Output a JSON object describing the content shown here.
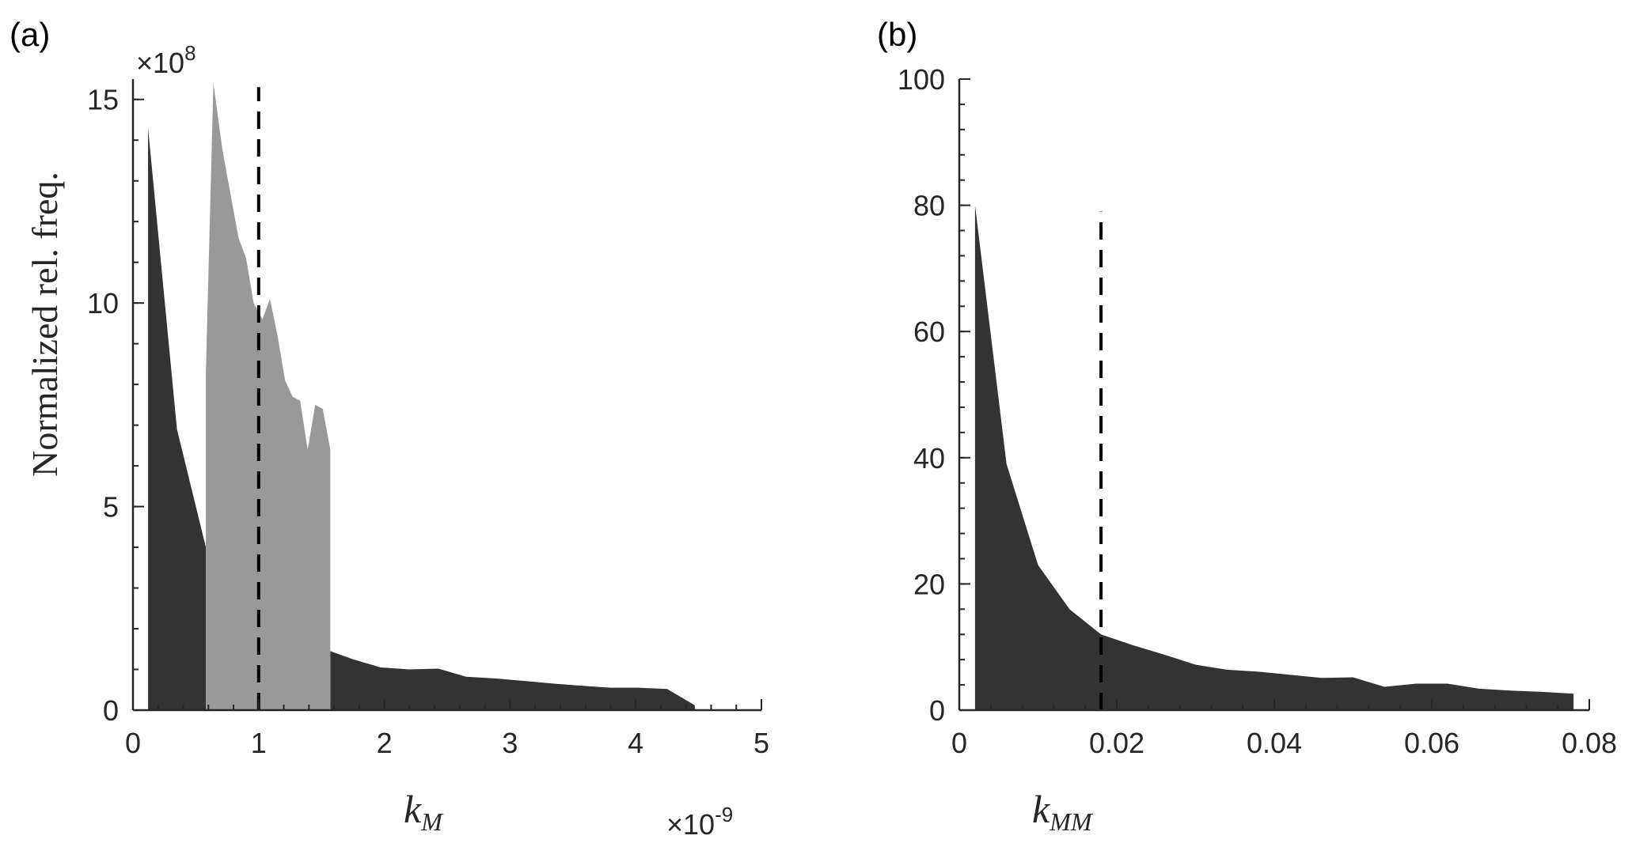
{
  "chart_data": [
    {
      "panel_label": "(a)",
      "type": "area",
      "xlabel": {
        "main": "k",
        "sub": "M"
      },
      "ylabel": "Normalized rel. freq.",
      "y_exponent": {
        "prefix": "×10",
        "power": "8"
      },
      "x_exponent": {
        "prefix": "×10",
        "power": "-9"
      },
      "xlim": [
        0,
        5
      ],
      "ylim": [
        0,
        15.5
      ],
      "xticks": [
        0,
        1,
        2,
        3,
        4,
        5
      ],
      "xtick_labels": [
        "0",
        "1",
        "2",
        "3",
        "4",
        "5"
      ],
      "yticks": [
        0,
        5,
        10,
        15
      ],
      "ytick_labels": [
        "0",
        "5",
        "10",
        "15"
      ],
      "y_minor_step": 1,
      "x_minor_step": 0.2,
      "vline": 1.0,
      "vline_ymax": 15.3,
      "series": [
        {
          "color": "#333333",
          "x": [
            0.12,
            0.35,
            0.58,
            0.58,
            1.57,
            1.57,
            1.75,
            1.97,
            2.2,
            2.43,
            2.65,
            2.88,
            3.1,
            3.35,
            3.57,
            3.8,
            4.02,
            4.25,
            4.47
          ],
          "y": [
            14.3,
            6.9,
            4.0,
            0,
            0,
            1.45,
            1.25,
            1.05,
            1.0,
            1.02,
            0.82,
            0.78,
            0.72,
            0.65,
            0.6,
            0.55,
            0.55,
            0.52,
            0.12
          ]
        },
        {
          "color": "#999999",
          "x": [
            0.58,
            0.58,
            0.64,
            0.71,
            0.78,
            0.84,
            0.9,
            0.96,
            1.03,
            1.09,
            1.15,
            1.21,
            1.27,
            1.33,
            1.39,
            1.45,
            1.51,
            1.57,
            1.57
          ],
          "y": [
            0,
            8.3,
            15.4,
            13.8,
            12.6,
            11.6,
            11.1,
            10.0,
            9.6,
            10.1,
            9.2,
            8.1,
            7.7,
            7.6,
            6.4,
            7.5,
            7.4,
            6.4,
            0
          ]
        }
      ]
    },
    {
      "panel_label": "(b)",
      "type": "area",
      "xlabel": {
        "main": "k",
        "sub": "MM"
      },
      "xlim": [
        0,
        0.08
      ],
      "ylim": [
        0,
        100
      ],
      "xticks": [
        0,
        0.02,
        0.04,
        0.06,
        0.08
      ],
      "xtick_labels": [
        "0",
        "0.02",
        "0.04",
        "0.06",
        "0.08"
      ],
      "yticks": [
        0,
        20,
        40,
        60,
        80,
        100
      ],
      "ytick_labels": [
        "0",
        "20",
        "40",
        "60",
        "80",
        "100"
      ],
      "y_minor_step": 4,
      "x_minor_step": 0.004,
      "vline": 0.018,
      "vline_ymax": 79,
      "series": [
        {
          "color": "#333333",
          "x": [
            0.002,
            0.006,
            0.01,
            0.014,
            0.018,
            0.022,
            0.026,
            0.03,
            0.034,
            0.038,
            0.042,
            0.046,
            0.05,
            0.054,
            0.058,
            0.062,
            0.066,
            0.07,
            0.074,
            0.078
          ],
          "y": [
            80,
            39,
            23,
            16,
            12,
            10.3,
            8.8,
            7.2,
            6.4,
            6.1,
            5.6,
            5.1,
            5.2,
            3.7,
            4.2,
            4.2,
            3.4,
            3.1,
            2.9,
            2.6
          ]
        }
      ]
    }
  ]
}
